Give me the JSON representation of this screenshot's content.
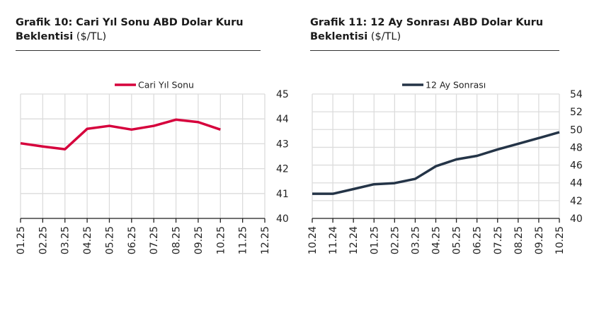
{
  "chart_data": [
    {
      "type": "line",
      "title_bold_line1": "Grafik 10: Cari Yıl Sonu ABD Dolar Kuru",
      "title_bold_line2": "Beklentisi",
      "title_unit": "($/TL)",
      "categories": [
        "01.25",
        "02.25",
        "03.25",
        "04.25",
        "05.25",
        "06.25",
        "07.25",
        "08.25",
        "09.25",
        "10.25",
        "11.25",
        "12.25"
      ],
      "series": [
        {
          "name": "Cari Yıl Sonu",
          "color": "#d6003c",
          "values": [
            43.02,
            42.89,
            42.78,
            43.6,
            43.72,
            43.57,
            43.72,
            43.97,
            43.87,
            43.57,
            null,
            null
          ]
        }
      ],
      "ylim": [
        40,
        45
      ],
      "yticks": [
        "40",
        "41",
        "42",
        "43",
        "44",
        "45"
      ],
      "yaxis_side": "right",
      "grid": true,
      "legend": "top-center"
    },
    {
      "type": "line",
      "title_bold_line1": "Grafik 11: 12 Ay Sonrası ABD Dolar Kuru",
      "title_bold_line2": "Beklentisi",
      "title_unit": "($/TL)",
      "categories": [
        "10.24",
        "11.24",
        "12.24",
        "01.25",
        "02.25",
        "03.25",
        "04.25",
        "05.25",
        "06.25",
        "07.25",
        "08.25",
        "09.25",
        "10.25"
      ],
      "series": [
        {
          "name": "12 Ay Sonrası",
          "color": "#243447",
          "values": [
            42.77,
            42.77,
            43.3,
            43.84,
            43.97,
            44.45,
            45.87,
            46.64,
            47.04,
            47.76,
            48.4,
            49.04,
            49.7
          ]
        }
      ],
      "ylim": [
        40,
        54
      ],
      "yticks": [
        "40",
        "42",
        "44",
        "46",
        "48",
        "50",
        "52",
        "54"
      ],
      "yaxis_side": "right",
      "grid": true,
      "legend": "top-center"
    }
  ]
}
